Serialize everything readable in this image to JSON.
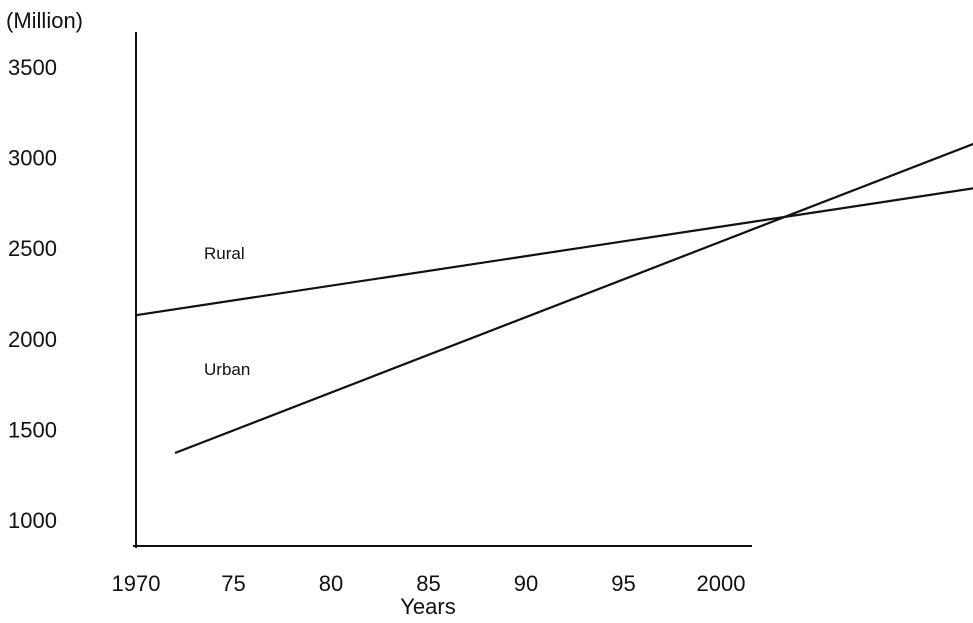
{
  "chart_data": {
    "type": "line",
    "title": "",
    "ylabel": "(Million)",
    "xlabel": "Years",
    "x_ticks": [
      1970,
      1975,
      1980,
      1985,
      1990,
      1995,
      2000
    ],
    "x_tick_labels": [
      "1970",
      "75",
      "80",
      "85",
      "90",
      "95",
      "2000"
    ],
    "y_ticks": [
      1000,
      1500,
      2000,
      2500,
      3000,
      3500
    ],
    "y_tick_labels": [
      "1000",
      "1500",
      "2000",
      "2500",
      "3000",
      "3500"
    ],
    "ylim": [
      1000,
      3500
    ],
    "xlim": [
      1970,
      2020
    ],
    "grid": false,
    "series": [
      {
        "name": "Rural",
        "x": [
          1970,
          2016
        ],
        "y": [
          2130,
          2880
        ]
      },
      {
        "name": "Urban",
        "x": [
          1972,
          2020
        ],
        "y": [
          1370,
          3370
        ]
      }
    ]
  }
}
